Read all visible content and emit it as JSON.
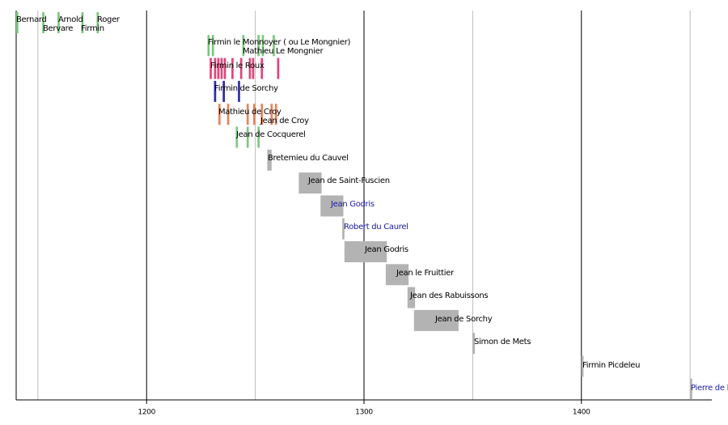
{
  "chart_data": {
    "type": "timeline",
    "xlim": [
      1140,
      1460
    ],
    "xticks": [
      1200,
      1300,
      1400
    ],
    "minor_xticks": [
      1150,
      1250,
      1350,
      1450
    ],
    "grid": true,
    "rows": [
      {
        "color": "#7cc67f",
        "labels": [
          "Bernard",
          "Bervare",
          "Arnold",
          "Firmin",
          "Roger"
        ],
        "bars": [
          [
            1140,
            1141
          ],
          [
            1152,
            1153
          ],
          [
            1159,
            1160
          ],
          [
            1170,
            1171
          ],
          [
            1177,
            1178
          ]
        ]
      },
      {
        "color": "#7cc67f",
        "labels": [
          "Firmin le Monnoyer ( ou Le Mongnier)",
          "Mathieu Le Mongnier"
        ],
        "bars": [
          [
            1228,
            1229
          ],
          [
            1230,
            1231
          ],
          [
            1244,
            1245
          ],
          [
            1251,
            1252
          ],
          [
            1253,
            1254
          ],
          [
            1258,
            1259
          ]
        ]
      },
      {
        "color": "#e0457b",
        "labels": [
          "Firmin le Roux"
        ],
        "bars": [
          [
            1229,
            1230
          ],
          [
            1231,
            1232
          ],
          [
            1232.5,
            1233.5
          ],
          [
            1234,
            1235
          ],
          [
            1235.5,
            1236.5
          ],
          [
            1239,
            1240
          ],
          [
            1243,
            1244
          ],
          [
            1247,
            1248
          ],
          [
            1248.5,
            1249.5
          ],
          [
            1252.5,
            1253.5
          ],
          [
            1260,
            1261
          ]
        ]
      },
      {
        "color": "#2b2ba8",
        "labels": [
          "Firmin de Sorchy"
        ],
        "bars": [
          [
            1231,
            1232
          ],
          [
            1235,
            1236
          ],
          [
            1242,
            1243
          ]
        ]
      },
      {
        "color": "#e8825a",
        "labels": [
          "Mathieu de Croy",
          "Jean de Croy"
        ],
        "bars": [
          [
            1233,
            1234
          ],
          [
            1237,
            1238
          ],
          [
            1246,
            1247
          ],
          [
            1249,
            1250
          ],
          [
            1252.5,
            1253.5
          ],
          [
            1257,
            1258
          ],
          [
            1259,
            1260
          ]
        ]
      },
      {
        "color": "#7cc67f",
        "labels": [
          "Jean de Cocquerel"
        ],
        "bars": [
          [
            1241,
            1242
          ],
          [
            1246,
            1247
          ],
          [
            1251,
            1252
          ]
        ]
      },
      {
        "color": "#b3b3b3",
        "labels": [
          "Bretemieu du Cauvel"
        ],
        "bars": [
          [
            1255.5,
            1257.5
          ]
        ]
      },
      {
        "color": "#b3b3b3",
        "labels": [
          "Jean de Saint-Fuscien"
        ],
        "bars": [
          [
            1270,
            1280.5
          ]
        ]
      },
      {
        "color": "#b3b3b3",
        "label_color": "#1a1aa6",
        "labels": [
          "Jean Godris"
        ],
        "bars": [
          [
            1280,
            1290.5
          ]
        ]
      },
      {
        "color": "#b3b3b3",
        "label_color": "#1a1aa6",
        "labels": [
          "Robert du Caurel"
        ],
        "bars": [
          [
            1290,
            1291
          ]
        ]
      },
      {
        "color": "#b3b3b3",
        "labels": [
          "Jean Godris"
        ],
        "bars": [
          [
            1291,
            1310.5
          ]
        ]
      },
      {
        "color": "#b3b3b3",
        "labels": [
          "Jean le Fruittier"
        ],
        "bars": [
          [
            1310,
            1320.5
          ]
        ]
      },
      {
        "color": "#b3b3b3",
        "labels": [
          "Jean des Rabuissons"
        ],
        "bars": [
          [
            1320,
            1323.5
          ]
        ]
      },
      {
        "color": "#b3b3b3",
        "labels": [
          "Jean de Sorchy"
        ],
        "bars": [
          [
            1323,
            1343.5
          ]
        ]
      },
      {
        "color": "#b3b3b3",
        "labels": [
          "Simon de Mets"
        ],
        "bars": [
          [
            1350,
            1351
          ]
        ]
      },
      {
        "color": "#b3b3b3",
        "labels": [
          "Firmin Picdeleu"
        ],
        "bars": [
          [
            1400,
            1401
          ]
        ]
      },
      {
        "color": "#b3b3b3",
        "label_color": "#1a1aa6",
        "labels": [
          "Pierre de l"
        ],
        "bars": [
          [
            1450,
            1451
          ]
        ]
      }
    ]
  }
}
